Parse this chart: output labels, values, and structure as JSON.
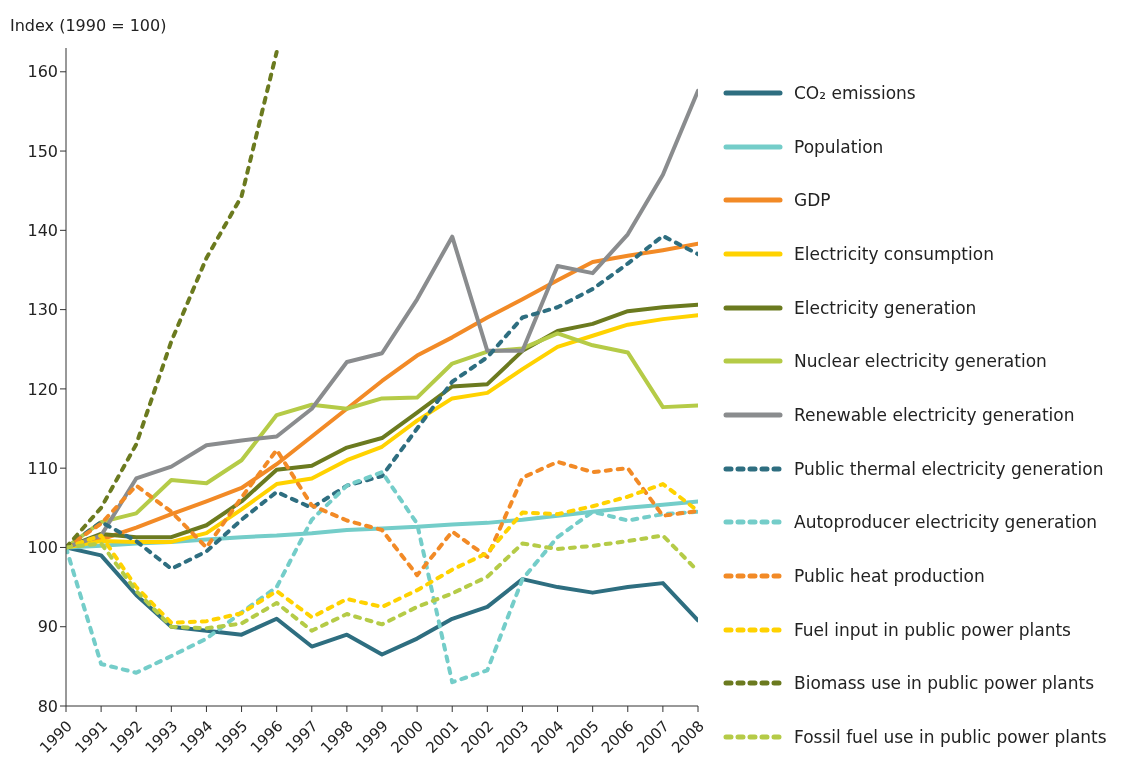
{
  "chart_data": {
    "type": "line",
    "ylabel": "Index (1990 = 100)",
    "categories": [
      "1990",
      "1991",
      "1992",
      "1993",
      "1994",
      "1995",
      "1996",
      "1997",
      "1998",
      "1999",
      "2000",
      "2001",
      "2002",
      "2003",
      "2004",
      "2005",
      "2006",
      "2007",
      "2008"
    ],
    "ylim": [
      80,
      163
    ],
    "yticks": [
      80,
      90,
      100,
      110,
      120,
      130,
      140,
      150,
      160
    ],
    "grid": false,
    "legend": "right",
    "series": [
      {
        "name": "CO₂ emissions",
        "color": "#2e6e80",
        "line_style": "solid",
        "values": [
          100,
          99,
          94,
          90,
          89.5,
          89,
          91,
          87.5,
          89,
          86.5,
          88.5,
          91,
          92.5,
          96,
          95,
          94.3,
          95,
          95.5,
          90.8
        ]
      },
      {
        "name": "Population",
        "color": "#74cdc9",
        "line_style": "solid",
        "values": [
          100,
          100.2,
          100.5,
          100.7,
          101,
          101.3,
          101.5,
          101.8,
          102.2,
          102.4,
          102.6,
          102.9,
          103.1,
          103.5,
          104,
          104.5,
          105,
          105.4,
          105.8
        ]
      },
      {
        "name": "GDP",
        "color": "#f28a26",
        "line_style": "solid",
        "values": [
          100,
          101,
          102.5,
          104.2,
          105.8,
          107.5,
          110.5,
          114,
          117.5,
          121,
          124.2,
          126.5,
          129,
          131.3,
          133.7,
          136,
          136.8,
          137.5,
          138.3
        ]
      },
      {
        "name": "Electricity consumption",
        "color": "#ffd200",
        "line_style": "solid",
        "values": [
          100,
          100.8,
          100.7,
          100.7,
          101.8,
          104.8,
          108,
          108.7,
          111,
          112.7,
          116,
          118.8,
          119.5,
          122.5,
          125.3,
          126.7,
          128.1,
          128.8,
          129.3
        ]
      },
      {
        "name": "Electricity generation",
        "color": "#6b7a1f",
        "line_style": "solid",
        "values": [
          100,
          101.7,
          101.3,
          101.3,
          102.8,
          105.8,
          109.8,
          110.3,
          112.6,
          113.8,
          117,
          120.3,
          120.6,
          124.8,
          127.3,
          128.2,
          129.8,
          130.3,
          130.6
        ]
      },
      {
        "name": "Nuclear electricity generation",
        "color": "#b5cb47",
        "line_style": "solid",
        "values": [
          100,
          103.2,
          104.3,
          108.5,
          108.1,
          111,
          116.7,
          118,
          117.5,
          118.8,
          118.9,
          123.2,
          124.7,
          125.1,
          127,
          125.5,
          124.6,
          117.7,
          117.9
        ]
      },
      {
        "name": "Renewable electricity generation",
        "color": "#8a8c8e",
        "line_style": "solid",
        "values": [
          100,
          101.5,
          108.7,
          110.2,
          112.9,
          113.5,
          114,
          117.5,
          123.4,
          124.5,
          131.3,
          139.2,
          124.8,
          124.8,
          135.5,
          134.6,
          139.5,
          147,
          157.6
        ]
      },
      {
        "name": "Public thermal electricity generation",
        "color": "#2e6e80",
        "line_style": "dotted",
        "values": [
          100,
          103.2,
          100.8,
          97.3,
          99.5,
          103.5,
          107,
          105,
          107.8,
          109,
          115,
          120.9,
          124,
          129,
          130.3,
          132.6,
          135.8,
          139.3,
          137
        ]
      },
      {
        "name": "Autoproducer electricity generation",
        "color": "#74cdc9",
        "line_style": "dotted",
        "values": [
          100,
          85.3,
          84.2,
          86.3,
          88.5,
          91.8,
          95,
          103.5,
          107.8,
          109.5,
          103,
          83,
          84.5,
          96,
          101.3,
          104.5,
          103.4,
          104.2,
          104.5
        ]
      },
      {
        "name": "Public heat production",
        "color": "#f28a26",
        "line_style": "dotted",
        "values": [
          100,
          103,
          107.8,
          104.5,
          100,
          106.3,
          112.3,
          105.3,
          103.4,
          102.2,
          96.5,
          102,
          98.8,
          108.8,
          110.8,
          109.5,
          110,
          104,
          104.6
        ]
      },
      {
        "name": "Fuel input in public power plants",
        "color": "#ffd200",
        "line_style": "dotted",
        "values": [
          100,
          101.5,
          95,
          90.5,
          90.7,
          91.7,
          94.5,
          91.2,
          93.5,
          92.5,
          94.6,
          97.2,
          99.3,
          104.4,
          104.2,
          105.2,
          106.4,
          108,
          104.6
        ]
      },
      {
        "name": "Biomass use in public power plants",
        "color": "#6b7a1f",
        "line_style": "dotted",
        "values": [
          100,
          105,
          113,
          126,
          136.5,
          144.3,
          162.5,
          null,
          null,
          null,
          null,
          null,
          null,
          null,
          null,
          null,
          null,
          null,
          null
        ]
      },
      {
        "name": "Fossil fuel use in public power plants",
        "color": "#b5cb47",
        "line_style": "dotted",
        "values": [
          100,
          100.5,
          94.5,
          90,
          89.8,
          90.4,
          93,
          89.5,
          91.6,
          90.3,
          92.5,
          94.2,
          96.3,
          100.5,
          99.8,
          100.2,
          100.8,
          101.5,
          97
        ]
      }
    ]
  }
}
